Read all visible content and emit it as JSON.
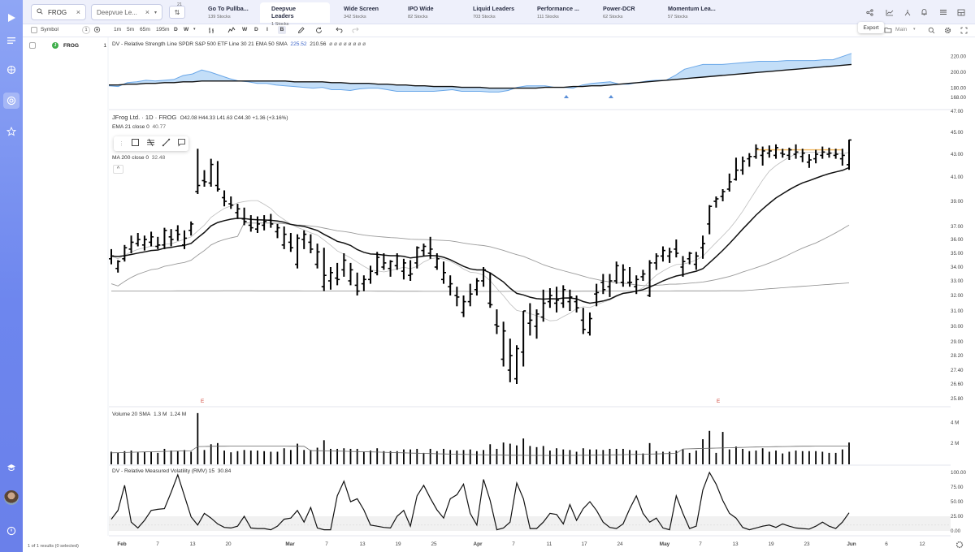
{
  "search": {
    "value": "FROG",
    "watchlist": "Deepvue Le...",
    "count": "21"
  },
  "lists": [
    {
      "name": "Go To Pullba...",
      "count": "139 Stocks"
    },
    {
      "name": "Deepvue Leaders",
      "count": "1 Stocks"
    },
    {
      "name": "Wide Screen",
      "count": "342 Stocks"
    },
    {
      "name": "IPO Wide",
      "count": "82 Stocks"
    },
    {
      "name": "Liquid Leaders",
      "count": "703 Stocks"
    },
    {
      "name": "Performance ...",
      "count": "111 Stocks"
    },
    {
      "name": "Power-DCR",
      "count": "62 Stocks"
    },
    {
      "name": "Momentum Lea...",
      "count": "57 Stocks"
    }
  ],
  "toolbar": {
    "symbol_header": "Symbol",
    "symbol_count": "1",
    "intervals": [
      "1m",
      "5m",
      "65m",
      "195m",
      "D",
      "W",
      "W",
      "D",
      "I",
      "B"
    ],
    "layout_name": "Main",
    "export_tooltip": "Export"
  },
  "symbols": [
    {
      "ticker": "FROG",
      "count": "1"
    }
  ],
  "footer": {
    "status": "1 of 1 results (0 selected)"
  },
  "panes": {
    "rs": {
      "label": "DV - Relative Strength Line SPDR S&P 500 ETF Line 30 21 EMA 50 SMA",
      "v1": "225.52",
      "v2": "210.56",
      "rest": "ø ø ø ø ø ø ø ø"
    },
    "price": {
      "title": "JFrog Ltd. · 1D · FROG",
      "ohlc": "O42.08  H44.33  L41.63  C44.30  +1.36 (+3.16%)",
      "ema": "EMA 21 close 0",
      "ema_val": "40.77",
      "ma": "MA 200 close 0",
      "ma_val": "32.48"
    },
    "volume": {
      "label": "Volume 20 SMA",
      "v1": "1.3 M",
      "v2": "1.24 M"
    },
    "rmv": {
      "label": "DV - Relative Measured Volatility (RMV) 15",
      "val": "30.84"
    }
  },
  "colors": {
    "accent": "#6d86ee",
    "rs_fill": "#b9d8f7",
    "rs_line": "#6aa7e8",
    "bar": "#000000"
  },
  "chart_data": [
    {
      "type": "line",
      "name": "rs_line_pane",
      "y_ticks": [
        "220.00",
        "200.00",
        "180.00",
        "168.00"
      ],
      "ylim": [
        160,
        230
      ],
      "series": [
        {
          "name": "RS Line",
          "values": [
            183,
            182,
            187,
            188,
            190,
            189,
            190,
            191,
            196,
            198,
            203,
            200,
            196,
            192,
            189,
            188,
            186,
            186,
            184,
            183,
            182,
            181,
            180,
            181,
            178,
            178,
            177,
            179,
            180,
            180,
            178,
            176,
            176,
            176,
            176,
            176,
            177,
            178,
            176,
            176,
            176,
            175,
            175,
            177,
            181,
            183,
            183,
            183,
            181,
            181,
            180,
            184,
            186,
            187,
            188,
            185,
            185,
            187,
            189,
            190,
            190,
            196,
            204,
            207,
            210,
            210,
            210,
            211,
            212,
            213,
            214,
            214,
            214,
            215,
            215,
            215,
            215,
            216,
            216,
            220,
            224
          ]
        },
        {
          "name": "MA",
          "values": [
            184,
            184,
            185,
            185,
            186,
            186,
            187,
            187,
            188,
            188,
            189,
            189,
            189,
            189,
            189,
            189,
            189,
            189,
            189,
            189,
            188,
            188,
            188,
            188,
            187,
            187,
            186,
            186,
            186,
            185,
            185,
            184,
            184,
            183,
            183,
            182,
            182,
            182,
            181,
            181,
            181,
            180,
            180,
            180,
            180,
            180,
            180,
            181,
            181,
            181,
            182,
            182,
            183,
            183,
            184,
            185,
            186,
            187,
            188,
            189,
            190,
            191,
            192,
            193,
            194,
            195,
            196,
            197,
            198,
            199,
            200,
            201,
            202,
            203,
            204,
            205,
            206,
            207,
            208,
            209,
            210
          ]
        }
      ]
    },
    {
      "type": "ohlc",
      "name": "price_pane",
      "y_ticks": [
        "47.00",
        "45.00",
        "43.00",
        "41.00",
        "39.00",
        "37.00",
        "36.00",
        "35.00",
        "34.00",
        "33.00",
        "32.00",
        "31.00",
        "30.00",
        "29.00",
        "28.20",
        "27.40",
        "26.60",
        "25.80"
      ],
      "x_ticks": [
        "Feb",
        "7",
        "13",
        "20",
        "Mar",
        "7",
        "13",
        "19",
        "25",
        "Apr",
        "7",
        "11",
        "17",
        "24",
        "May",
        "7",
        "13",
        "19",
        "23",
        "Jun",
        "6",
        "12"
      ],
      "earnings_marker": "E",
      "bars": [
        [
          34.6,
          35.3,
          34.2,
          34.8
        ],
        [
          33.9,
          34.5,
          33.6,
          34.4
        ],
        [
          34.6,
          35.6,
          34.4,
          35.4
        ],
        [
          35.3,
          36.3,
          35.0,
          35.8
        ],
        [
          35.7,
          36.5,
          35.5,
          36.0
        ],
        [
          35.6,
          36.3,
          35.2,
          36.0
        ],
        [
          35.8,
          36.6,
          35.5,
          36.2
        ],
        [
          35.5,
          36.2,
          35.3,
          35.6
        ],
        [
          35.6,
          36.9,
          35.3,
          36.7
        ],
        [
          36.2,
          36.8,
          35.5,
          36.0
        ],
        [
          36.7,
          37.1,
          35.9,
          36.4
        ],
        [
          35.6,
          36.7,
          35.3,
          36.1
        ],
        [
          36.7,
          37.4,
          36.3,
          37.2
        ],
        [
          39.8,
          43.5,
          39.6,
          40.3
        ],
        [
          40.7,
          41.6,
          40.2,
          40.6
        ],
        [
          40.5,
          42.6,
          40.2,
          42.1
        ],
        [
          40.3,
          42.4,
          39.8,
          40.0
        ],
        [
          39.3,
          39.9,
          38.6,
          39.0
        ],
        [
          38.8,
          39.4,
          38.4,
          38.7
        ],
        [
          38.1,
          38.8,
          37.6,
          38.4
        ],
        [
          37.6,
          38.5,
          37.1,
          37.4
        ],
        [
          37.1,
          37.9,
          36.6,
          36.9
        ],
        [
          36.8,
          37.8,
          36.5,
          37.2
        ],
        [
          37.1,
          37.9,
          36.7,
          37.4
        ],
        [
          37.5,
          38.0,
          36.9,
          37.2
        ],
        [
          36.6,
          37.2,
          36.1,
          36.9
        ],
        [
          35.6,
          37.0,
          35.3,
          36.4
        ],
        [
          35.8,
          36.5,
          35.1,
          35.4
        ],
        [
          34.2,
          36.4,
          33.9,
          36.1
        ],
        [
          36.0,
          36.7,
          35.3,
          36.4
        ],
        [
          35.8,
          36.4,
          35.0,
          35.3
        ],
        [
          34.2,
          35.7,
          33.9,
          35.1
        ],
        [
          32.6,
          35.4,
          32.3,
          33.4
        ],
        [
          33.0,
          34.0,
          32.4,
          33.6
        ],
        [
          33.2,
          34.3,
          32.7,
          33.1
        ],
        [
          33.8,
          35.0,
          33.3,
          34.5
        ],
        [
          33.0,
          34.3,
          32.7,
          33.8
        ],
        [
          32.7,
          33.6,
          32.0,
          32.3
        ],
        [
          32.8,
          33.4,
          32.3,
          33.1
        ],
        [
          33.1,
          34.1,
          32.8,
          33.7
        ],
        [
          33.6,
          35.1,
          33.4,
          34.7
        ],
        [
          34.0,
          35.0,
          33.8,
          34.3
        ],
        [
          33.9,
          34.5,
          33.3,
          34.4
        ],
        [
          34.1,
          35.0,
          33.8,
          34.8
        ],
        [
          33.7,
          34.6,
          33.1,
          34.3
        ],
        [
          33.4,
          34.5,
          33.0,
          33.5
        ],
        [
          34.3,
          35.5,
          33.9,
          35.4
        ],
        [
          35.2,
          35.7,
          34.8,
          35.5
        ],
        [
          35.0,
          36.2,
          34.6,
          35.3
        ],
        [
          34.0,
          35.0,
          33.8,
          34.6
        ],
        [
          33.1,
          34.4,
          32.8,
          33.6
        ],
        [
          32.6,
          33.4,
          32.0,
          32.8
        ],
        [
          32.0,
          32.6,
          31.3,
          31.9
        ],
        [
          30.9,
          32.0,
          30.6,
          31.6
        ],
        [
          31.6,
          32.8,
          31.3,
          32.1
        ],
        [
          32.4,
          33.2,
          32.0,
          33.0
        ],
        [
          33.0,
          34.0,
          32.6,
          33.8
        ],
        [
          31.5,
          33.6,
          31.2,
          31.4
        ],
        [
          30.1,
          31.1,
          29.5,
          30.0
        ],
        [
          28.0,
          30.3,
          27.6,
          29.7
        ],
        [
          27.4,
          29.2,
          26.7,
          28.2
        ],
        [
          26.9,
          28.8,
          26.6,
          28.6
        ],
        [
          28.4,
          31.0,
          27.6,
          31.0
        ],
        [
          30.2,
          31.5,
          29.4,
          30.4
        ],
        [
          30.0,
          31.1,
          29.2,
          30.8
        ],
        [
          30.6,
          32.4,
          30.3,
          31.5
        ],
        [
          31.6,
          32.5,
          31.2,
          32.0
        ],
        [
          31.5,
          32.6,
          30.9,
          31.7
        ],
        [
          31.5,
          32.7,
          31.2,
          32.4
        ],
        [
          31.6,
          32.4,
          31.0,
          31.9
        ],
        [
          31.6,
          32.0,
          30.9,
          31.2
        ],
        [
          30.4,
          31.2,
          29.5,
          29.8
        ],
        [
          29.6,
          30.9,
          29.4,
          30.5
        ],
        [
          32.1,
          32.8,
          31.3,
          32.2
        ],
        [
          32.9,
          33.5,
          32.1,
          32.4
        ],
        [
          32.6,
          33.5,
          31.9,
          33.0
        ],
        [
          33.0,
          34.4,
          32.8,
          34.1
        ],
        [
          32.9,
          34.2,
          32.6,
          33.8
        ],
        [
          32.9,
          34.0,
          32.6,
          32.9
        ],
        [
          32.6,
          33.4,
          32.1,
          33.1
        ],
        [
          33.3,
          33.8,
          33.0,
          33.5
        ],
        [
          32.0,
          34.5,
          31.9,
          34.3
        ],
        [
          34.3,
          35.0,
          33.8,
          34.8
        ],
        [
          34.8,
          35.5,
          34.4,
          35.2
        ],
        [
          34.8,
          35.4,
          34.3,
          35.1
        ],
        [
          35.3,
          36.0,
          34.7,
          35.0
        ],
        [
          34.0,
          34.8,
          33.3,
          34.4
        ],
        [
          34.6,
          35.1,
          34.2,
          35.0
        ],
        [
          34.2,
          35.1,
          33.8,
          34.8
        ],
        [
          35.4,
          36.3,
          34.6,
          35.7
        ],
        [
          37.2,
          38.7,
          36.4,
          38.6
        ],
        [
          39.0,
          39.4,
          38.5,
          39.2
        ],
        [
          39.4,
          40.0,
          39.0,
          39.8
        ],
        [
          40.0,
          41.3,
          39.8,
          40.6
        ],
        [
          40.8,
          42.7,
          40.7,
          41.6
        ],
        [
          41.6,
          42.8,
          41.2,
          42.4
        ],
        [
          42.6,
          43.1,
          41.9,
          42.8
        ],
        [
          42.8,
          43.9,
          42.6,
          43.5
        ],
        [
          42.9,
          43.7,
          42.0,
          43.3
        ],
        [
          43.1,
          43.8,
          42.7,
          43.3
        ],
        [
          42.9,
          43.9,
          42.6,
          43.6
        ],
        [
          43.1,
          43.5,
          42.7,
          43.0
        ],
        [
          42.9,
          43.6,
          42.5,
          43.4
        ],
        [
          43.0,
          43.9,
          42.6,
          43.2
        ],
        [
          42.8,
          43.5,
          42.3,
          43.1
        ],
        [
          42.3,
          43.0,
          41.8,
          42.5
        ],
        [
          42.6,
          43.4,
          42.2,
          43.0
        ],
        [
          42.9,
          43.7,
          42.6,
          43.2
        ],
        [
          43.0,
          43.6,
          42.7,
          43.1
        ],
        [
          42.9,
          43.5,
          42.6,
          43.0
        ],
        [
          42.6,
          43.5,
          42.0,
          42.9
        ],
        [
          42.08,
          44.33,
          41.63,
          44.3
        ]
      ]
    },
    {
      "type": "bar",
      "name": "volume_pane",
      "y_ticks": [
        "4 M",
        "2 M"
      ],
      "ylim": [
        0,
        5.2
      ]
    },
    {
      "type": "line",
      "name": "rmv_pane",
      "y_ticks": [
        "100.00",
        "75.00",
        "50.00",
        "25.00",
        "0.00"
      ],
      "ylim": [
        0,
        100
      ],
      "series": [
        {
          "name": "RMV",
          "values": [
            20,
            35,
            78,
            15,
            5,
            18,
            35,
            37,
            38,
            66,
            96,
            60,
            24,
            10,
            30,
            22,
            12,
            6,
            5,
            8,
            25,
            5,
            4,
            4,
            2,
            8,
            20,
            22,
            35,
            15,
            40,
            5,
            2,
            2,
            60,
            85,
            50,
            55,
            36,
            10,
            8,
            6,
            5,
            25,
            35,
            8,
            60,
            78,
            56,
            36,
            22,
            55,
            62,
            80,
            30,
            10,
            88,
            52,
            2,
            5,
            15,
            82,
            55,
            4,
            4,
            15,
            30,
            28,
            12,
            45,
            18,
            38,
            50,
            35,
            15,
            6,
            4,
            12,
            38,
            60,
            30,
            15,
            22,
            5,
            2,
            60,
            30,
            4,
            8,
            70,
            100,
            80,
            52,
            30,
            22,
            6,
            2,
            5,
            8,
            10,
            6,
            12,
            8,
            5,
            4,
            3,
            8,
            15,
            8,
            4,
            15,
            31
          ]
        }
      ]
    }
  ]
}
